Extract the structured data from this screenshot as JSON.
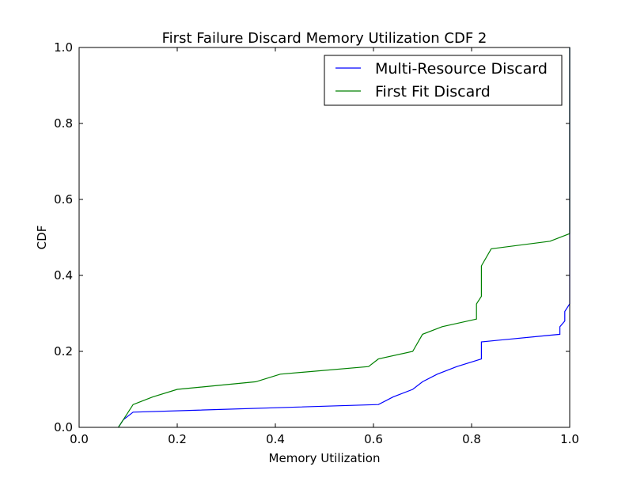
{
  "chart_data": {
    "type": "line",
    "title": "First Failure Discard Memory Utilization CDF 2",
    "xlabel": "Memory Utilization",
    "ylabel": "CDF",
    "xlim": [
      0.0,
      1.0
    ],
    "ylim": [
      0.0,
      1.0
    ],
    "xticks": [
      "0.0",
      "0.2",
      "0.4",
      "0.6",
      "0.8",
      "1.0"
    ],
    "yticks": [
      "0.0",
      "0.2",
      "0.4",
      "0.6",
      "0.8",
      "1.0"
    ],
    "grid": false,
    "legend_position": "top-right",
    "series": [
      {
        "name": "Multi-Resource Discard",
        "color": "#0000ff",
        "x": [
          0.08,
          0.09,
          0.11,
          0.61,
          0.64,
          0.68,
          0.7,
          0.73,
          0.77,
          0.82,
          0.82,
          0.98,
          0.98,
          0.99,
          0.99,
          1.0,
          1.0
        ],
        "y": [
          0.0,
          0.02,
          0.04,
          0.06,
          0.08,
          0.1,
          0.12,
          0.14,
          0.16,
          0.18,
          0.225,
          0.245,
          0.265,
          0.28,
          0.305,
          0.325,
          1.0
        ]
      },
      {
        "name": "First Fit Discard",
        "color": "#008000",
        "x": [
          0.08,
          0.09,
          0.11,
          0.15,
          0.2,
          0.36,
          0.41,
          0.59,
          0.61,
          0.68,
          0.7,
          0.74,
          0.81,
          0.81,
          0.82,
          0.82,
          0.84,
          0.96,
          1.0,
          1.0
        ],
        "y": [
          0.0,
          0.02,
          0.06,
          0.08,
          0.1,
          0.12,
          0.14,
          0.16,
          0.18,
          0.2,
          0.245,
          0.265,
          0.285,
          0.325,
          0.345,
          0.425,
          0.47,
          0.49,
          0.51,
          1.0
        ]
      }
    ]
  }
}
